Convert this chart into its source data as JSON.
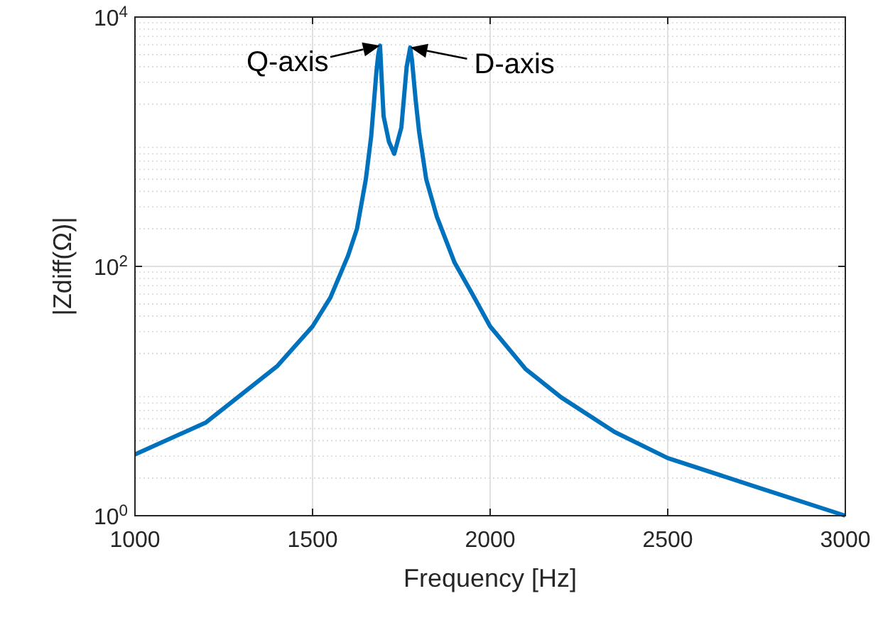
{
  "chart_data": {
    "type": "line",
    "xlabel": "Frequency [Hz]",
    "ylabel": "|Zdiff(Ω)|",
    "log": "y",
    "grid": true,
    "line_style": "solid",
    "xlim": [
      1000,
      3000
    ],
    "xticks": [
      1000,
      1500,
      2000,
      2500,
      3000
    ],
    "ylim": [
      1,
      10000
    ],
    "yticks": [
      {
        "value": 1,
        "label": "10$^{0}$"
      },
      {
        "value": 100,
        "label": "10$^{2}$"
      },
      {
        "value": 10000,
        "label": "10$^{4}$"
      }
    ],
    "x": [
      1000,
      1200,
      1400,
      1500,
      1550,
      1600,
      1625,
      1650,
      1665,
      1680,
      1685,
      1690,
      1695,
      1700,
      1715,
      1730,
      1750,
      1765,
      1775,
      1780,
      1790,
      1800,
      1820,
      1850,
      1900,
      1950,
      2000,
      2100,
      2200,
      2350,
      2500,
      2750,
      3000
    ],
    "series": [
      {
        "color": "#0072bd",
        "values": [
          3.1,
          5.6,
          15.8,
          33,
          56,
          122,
          200,
          500,
          1100,
          3700,
          5000,
          5900,
          3000,
          1600,
          1000,
          800,
          1300,
          4000,
          5700,
          4500,
          2200,
          1200,
          500,
          250,
          107,
          60,
          33,
          15,
          8.9,
          4.7,
          2.9,
          1.7,
          1.0
        ]
      }
    ],
    "annotations": [
      {
        "text": "Q-axis",
        "x": 1690,
        "y": 5900
      },
      {
        "text": "D-axis",
        "x": 1775,
        "y": 5700
      }
    ]
  }
}
